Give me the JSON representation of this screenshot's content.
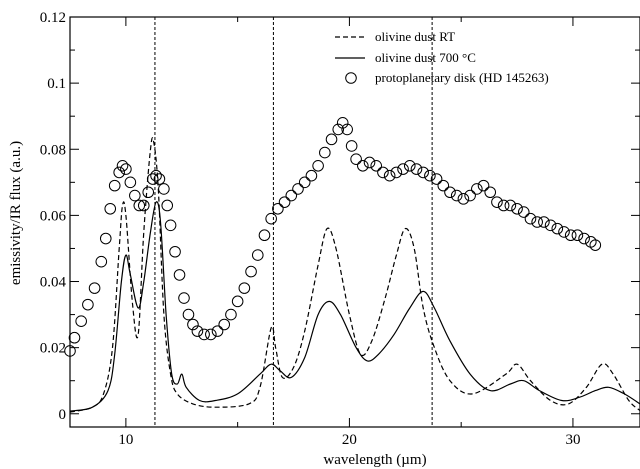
{
  "chart_data": {
    "type": "line",
    "xlabel": "wavelength (µm)",
    "ylabel": "emissivity/IR flux (a.u.)",
    "xlim": [
      7.5,
      33
    ],
    "ylim": [
      -0.004,
      0.12
    ],
    "x_ticks": [
      10,
      20,
      30
    ],
    "x_tick_labels": [
      "10",
      "20",
      "30"
    ],
    "y_ticks": [
      0,
      0.02,
      0.04,
      0.06,
      0.08,
      0.1,
      0.12
    ],
    "y_tick_labels": [
      "0",
      "0.02",
      "0.04",
      "0.06",
      "0.08",
      "0.1",
      "0.12"
    ],
    "vertical_lines": [
      11.3,
      16.6,
      23.7
    ],
    "legend_position": "top-right",
    "grid": false,
    "series": [
      {
        "name": "olivine dust RT",
        "style": "dashed",
        "points": [
          [
            7.5,
            0.0005
          ],
          [
            8.5,
            0.002
          ],
          [
            9.0,
            0.006
          ],
          [
            9.4,
            0.02
          ],
          [
            9.7,
            0.05
          ],
          [
            9.85,
            0.063
          ],
          [
            10.0,
            0.06
          ],
          [
            10.3,
            0.033
          ],
          [
            10.55,
            0.024
          ],
          [
            10.8,
            0.055
          ],
          [
            11.1,
            0.08
          ],
          [
            11.25,
            0.082
          ],
          [
            11.45,
            0.068
          ],
          [
            11.7,
            0.03
          ],
          [
            12.0,
            0.012
          ],
          [
            12.3,
            0.006
          ],
          [
            13.0,
            0.003
          ],
          [
            14.0,
            0.002
          ],
          [
            15.5,
            0.003
          ],
          [
            16.0,
            0.008
          ],
          [
            16.5,
            0.026
          ],
          [
            16.7,
            0.02
          ],
          [
            17.0,
            0.011
          ],
          [
            17.5,
            0.014
          ],
          [
            18.0,
            0.025
          ],
          [
            18.6,
            0.045
          ],
          [
            19.0,
            0.056
          ],
          [
            19.4,
            0.05
          ],
          [
            20.0,
            0.03
          ],
          [
            20.5,
            0.018
          ],
          [
            21.0,
            0.022
          ],
          [
            21.6,
            0.035
          ],
          [
            22.1,
            0.048
          ],
          [
            22.5,
            0.056
          ],
          [
            22.9,
            0.05
          ],
          [
            23.3,
            0.032
          ],
          [
            23.8,
            0.02
          ],
          [
            24.5,
            0.01
          ],
          [
            25.5,
            0.006
          ],
          [
            27.0,
            0.012
          ],
          [
            27.5,
            0.015
          ],
          [
            28.1,
            0.01
          ],
          [
            29.0,
            0.004
          ],
          [
            29.8,
            0.003
          ],
          [
            30.6,
            0.008
          ],
          [
            31.3,
            0.015
          ],
          [
            31.8,
            0.012
          ],
          [
            32.5,
            0.004
          ],
          [
            33.0,
            0.001
          ]
        ]
      },
      {
        "name": "olivine dust 700 °C",
        "style": "solid",
        "points": [
          [
            7.5,
            0.0008
          ],
          [
            8.5,
            0.002
          ],
          [
            9.2,
            0.007
          ],
          [
            9.5,
            0.018
          ],
          [
            9.8,
            0.04
          ],
          [
            10.0,
            0.048
          ],
          [
            10.2,
            0.042
          ],
          [
            10.55,
            0.032
          ],
          [
            10.8,
            0.04
          ],
          [
            11.1,
            0.055
          ],
          [
            11.35,
            0.064
          ],
          [
            11.55,
            0.058
          ],
          [
            11.8,
            0.03
          ],
          [
            12.05,
            0.012
          ],
          [
            12.3,
            0.009
          ],
          [
            12.5,
            0.012
          ],
          [
            12.7,
            0.008
          ],
          [
            13.3,
            0.004
          ],
          [
            14.0,
            0.004
          ],
          [
            15.0,
            0.006
          ],
          [
            16.0,
            0.012
          ],
          [
            16.5,
            0.015
          ],
          [
            16.9,
            0.013
          ],
          [
            17.4,
            0.011
          ],
          [
            18.0,
            0.017
          ],
          [
            18.6,
            0.03
          ],
          [
            19.1,
            0.034
          ],
          [
            19.6,
            0.03
          ],
          [
            20.3,
            0.02
          ],
          [
            20.8,
            0.016
          ],
          [
            21.3,
            0.018
          ],
          [
            22.0,
            0.024
          ],
          [
            22.7,
            0.032
          ],
          [
            23.3,
            0.037
          ],
          [
            23.8,
            0.032
          ],
          [
            24.5,
            0.022
          ],
          [
            25.4,
            0.012
          ],
          [
            26.3,
            0.007
          ],
          [
            27.2,
            0.009
          ],
          [
            27.8,
            0.01
          ],
          [
            28.5,
            0.007
          ],
          [
            29.5,
            0.004
          ],
          [
            30.3,
            0.005
          ],
          [
            31.0,
            0.007
          ],
          [
            31.6,
            0.008
          ],
          [
            32.3,
            0.006
          ],
          [
            33.0,
            0.003
          ]
        ]
      },
      {
        "name": "protoplanetary disk (HD 145263)",
        "style": "markers",
        "points": [
          [
            7.5,
            0.019
          ],
          [
            7.7,
            0.023
          ],
          [
            8.0,
            0.028
          ],
          [
            8.3,
            0.033
          ],
          [
            8.6,
            0.038
          ],
          [
            8.9,
            0.046
          ],
          [
            9.1,
            0.053
          ],
          [
            9.3,
            0.062
          ],
          [
            9.5,
            0.069
          ],
          [
            9.7,
            0.073
          ],
          [
            9.85,
            0.075
          ],
          [
            10.0,
            0.074
          ],
          [
            10.2,
            0.07
          ],
          [
            10.4,
            0.066
          ],
          [
            10.6,
            0.063
          ],
          [
            10.8,
            0.063
          ],
          [
            11.0,
            0.067
          ],
          [
            11.2,
            0.071
          ],
          [
            11.35,
            0.072
          ],
          [
            11.5,
            0.071
          ],
          [
            11.7,
            0.068
          ],
          [
            11.85,
            0.063
          ],
          [
            12.0,
            0.057
          ],
          [
            12.2,
            0.049
          ],
          [
            12.4,
            0.042
          ],
          [
            12.6,
            0.035
          ],
          [
            12.8,
            0.03
          ],
          [
            13.0,
            0.027
          ],
          [
            13.2,
            0.025
          ],
          [
            13.5,
            0.024
          ],
          [
            13.8,
            0.024
          ],
          [
            14.1,
            0.025
          ],
          [
            14.4,
            0.027
          ],
          [
            14.7,
            0.03
          ],
          [
            15.0,
            0.034
          ],
          [
            15.3,
            0.038
          ],
          [
            15.6,
            0.043
          ],
          [
            15.9,
            0.048
          ],
          [
            16.2,
            0.054
          ],
          [
            16.5,
            0.059
          ],
          [
            16.8,
            0.062
          ],
          [
            17.1,
            0.064
          ],
          [
            17.4,
            0.066
          ],
          [
            17.7,
            0.068
          ],
          [
            18.0,
            0.07
          ],
          [
            18.3,
            0.072
          ],
          [
            18.6,
            0.075
          ],
          [
            18.9,
            0.079
          ],
          [
            19.2,
            0.083
          ],
          [
            19.5,
            0.086
          ],
          [
            19.7,
            0.088
          ],
          [
            19.9,
            0.086
          ],
          [
            20.1,
            0.081
          ],
          [
            20.3,
            0.077
          ],
          [
            20.6,
            0.075
          ],
          [
            20.9,
            0.076
          ],
          [
            21.2,
            0.075
          ],
          [
            21.5,
            0.073
          ],
          [
            21.8,
            0.072
          ],
          [
            22.1,
            0.073
          ],
          [
            22.4,
            0.074
          ],
          [
            22.7,
            0.075
          ],
          [
            23.0,
            0.074
          ],
          [
            23.3,
            0.073
          ],
          [
            23.6,
            0.072
          ],
          [
            23.9,
            0.071
          ],
          [
            24.2,
            0.069
          ],
          [
            24.5,
            0.067
          ],
          [
            24.8,
            0.066
          ],
          [
            25.1,
            0.065
          ],
          [
            25.4,
            0.066
          ],
          [
            25.7,
            0.068
          ],
          [
            26.0,
            0.069
          ],
          [
            26.3,
            0.067
          ],
          [
            26.6,
            0.064
          ],
          [
            26.9,
            0.063
          ],
          [
            27.2,
            0.063
          ],
          [
            27.5,
            0.062
          ],
          [
            27.8,
            0.061
          ],
          [
            28.1,
            0.059
          ],
          [
            28.4,
            0.058
          ],
          [
            28.7,
            0.058
          ],
          [
            29.0,
            0.057
          ],
          [
            29.3,
            0.056
          ],
          [
            29.6,
            0.055
          ],
          [
            29.9,
            0.054
          ],
          [
            30.2,
            0.054
          ],
          [
            30.5,
            0.053
          ],
          [
            30.8,
            0.052
          ],
          [
            31.0,
            0.051
          ]
        ]
      }
    ]
  }
}
